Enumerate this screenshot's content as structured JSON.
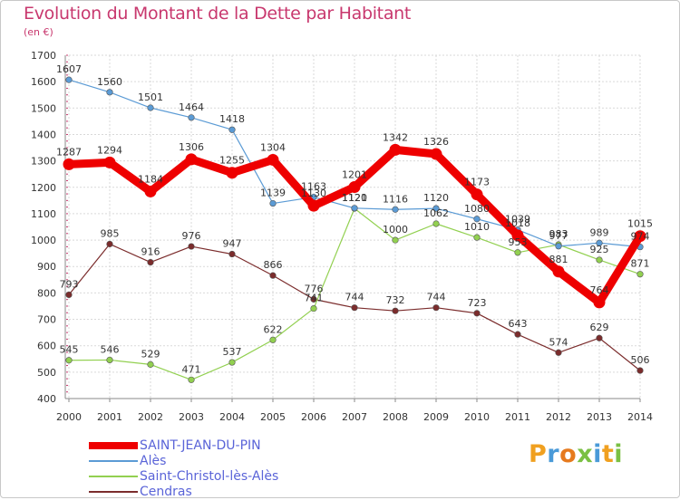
{
  "header": {
    "title": "Evolution du Montant de la Dette par Habitant",
    "subtitle": "(en €)"
  },
  "brand": {
    "letters": [
      "P",
      "r",
      "o",
      "x",
      "i",
      "t",
      "i"
    ],
    "colors": [
      "#f0a020",
      "#4a9ad8",
      "#e67a1e",
      "#7ac043",
      "#4a9ad8",
      "#f0a020",
      "#7ac043"
    ]
  },
  "chart_data": {
    "type": "line",
    "title": "Evolution du Montant de la Dette par Habitant",
    "subtitle": "(en €)",
    "xlabel": "",
    "ylabel": "",
    "x": [
      "2000",
      "2001",
      "2002",
      "2003",
      "2004",
      "2005",
      "2006",
      "2007",
      "2008",
      "2009",
      "2010",
      "2011",
      "2012",
      "2013",
      "2014"
    ],
    "ylim": [
      400,
      1700
    ],
    "yticks": [
      400,
      500,
      600,
      700,
      800,
      900,
      1000,
      1100,
      1200,
      1300,
      1400,
      1500,
      1600,
      1700
    ],
    "grid": true,
    "legend_position": "bottom-left",
    "series": [
      {
        "name": "SAINT-JEAN-DU-PIN",
        "color": "#ee0000",
        "emphasis": true,
        "values": [
          1287,
          1294,
          1184,
          1306,
          1255,
          1304,
          1130,
          1201,
          1342,
          1326,
          1173,
          1018,
          881,
          764,
          1015
        ],
        "labels": [
          "1287",
          "1294",
          "1184",
          "1306",
          "1255",
          "1304",
          "1130",
          "1201",
          "1342",
          "1326",
          "1173",
          "1018",
          "881",
          "764",
          "1015"
        ]
      },
      {
        "name": "Alès",
        "color": "#5b9bd5",
        "values": [
          1607,
          1560,
          1501,
          1464,
          1418,
          1139,
          1163,
          1121,
          1116,
          1120,
          1080,
          1039,
          977,
          989,
          974
        ],
        "labels": [
          "1607",
          "1560",
          "1501",
          "1464",
          "1418",
          "1139",
          "1163",
          "1121",
          "1116",
          "1120",
          "1080",
          "1039",
          "977",
          "989",
          "974"
        ]
      },
      {
        "name": "Saint-Christol-lès-Alès",
        "color": "#92d050",
        "values": [
          545,
          546,
          529,
          471,
          537,
          622,
          741,
          1120,
          1000,
          1062,
          1010,
          953,
          983,
          925,
          871
        ],
        "labels": [
          "545",
          "546",
          "529",
          "471",
          "537",
          "622",
          "741",
          "1120",
          "1000",
          "1062",
          "1010",
          "953",
          "983",
          "925",
          "871"
        ]
      },
      {
        "name": "Cendras",
        "color": "#7b2c2c",
        "values": [
          793,
          985,
          916,
          976,
          947,
          866,
          776,
          744,
          732,
          744,
          723,
          643,
          574,
          629,
          506
        ],
        "labels": [
          "793",
          "985",
          "916",
          "976",
          "947",
          "866",
          "776",
          "744",
          "732",
          "744",
          "723",
          "643",
          "574",
          "629",
          "506"
        ]
      }
    ]
  }
}
